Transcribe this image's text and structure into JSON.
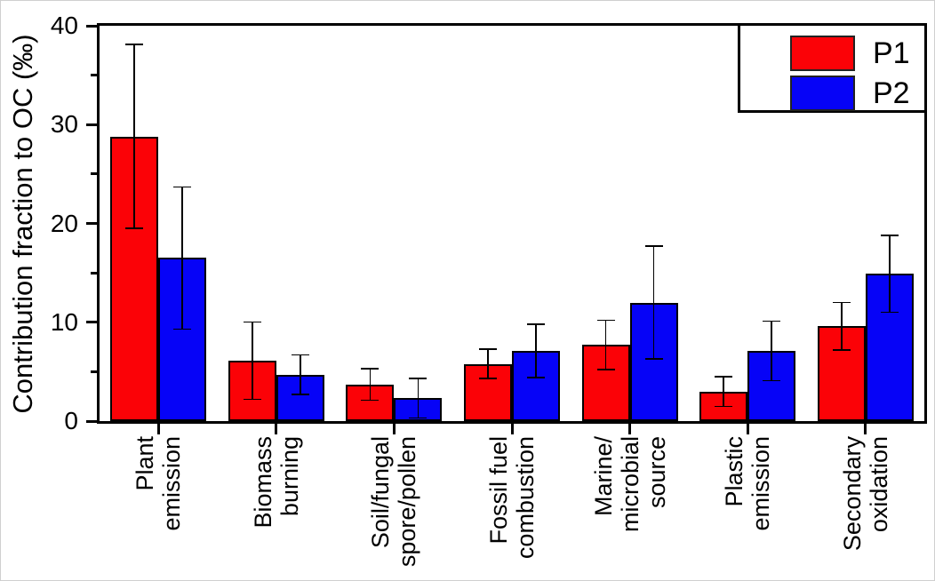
{
  "figure": {
    "background": "#ffffff",
    "axis_color": "#000000",
    "text_color": "#000000"
  },
  "chart_data": {
    "type": "bar",
    "title": "",
    "xlabel": "",
    "ylabel": "Contribution fraction to OC (‰)",
    "ylim": [
      0,
      40
    ],
    "yticks_major": [
      0,
      10,
      20,
      30,
      40
    ],
    "yticks_minor": [
      5,
      15,
      25,
      35
    ],
    "grid": false,
    "legend_position": "top-right",
    "error_bars": true,
    "categories": [
      [
        "Plant",
        "emission"
      ],
      [
        "Biomass",
        "burning"
      ],
      [
        "Soil/fungal",
        "spore/pollen"
      ],
      [
        "Fossil fuel",
        "combustion"
      ],
      [
        "Marine/",
        "microbial",
        "source"
      ],
      [
        "Plastic",
        "emission"
      ],
      [
        "Secondary",
        "oxidation"
      ]
    ],
    "series": [
      {
        "name": "P1",
        "color": "#fb0207",
        "values": [
          28.8,
          6.1,
          3.7,
          5.8,
          7.7,
          3.0,
          9.6
        ],
        "errors": [
          9.3,
          3.9,
          1.6,
          1.5,
          2.5,
          1.5,
          2.4
        ]
      },
      {
        "name": "P2",
        "color": "#0603f7",
        "values": [
          16.5,
          4.7,
          2.3,
          7.1,
          12.0,
          7.1,
          14.9
        ],
        "errors": [
          7.2,
          2.0,
          2.0,
          2.7,
          5.7,
          3.0,
          3.9
        ]
      }
    ]
  }
}
